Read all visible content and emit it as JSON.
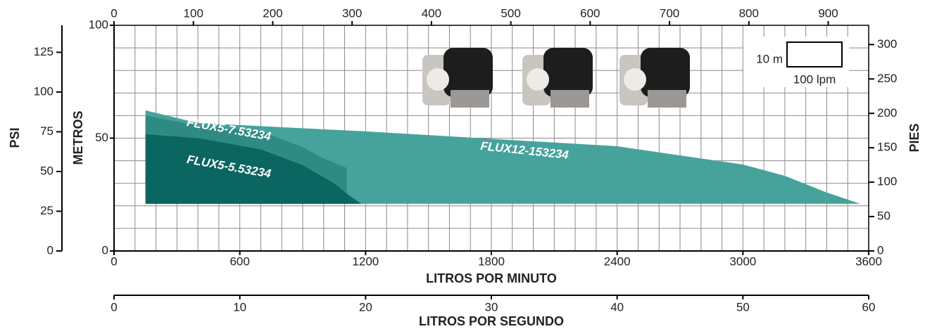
{
  "chart_data": {
    "type": "area",
    "x_label": "LITROS POR MINUTO",
    "y_label": "METROS",
    "xlim": [
      0,
      3600
    ],
    "xticks": [
      0,
      600,
      1200,
      1800,
      2400,
      3000,
      3600
    ],
    "ylim": [
      0,
      100
    ],
    "yticks": [
      0,
      50,
      100
    ],
    "xgrid": [
      0,
      100,
      200,
      300,
      400,
      500,
      600,
      700,
      800,
      900,
      1000,
      1100,
      1200,
      1300,
      1400,
      1500,
      1600,
      1700,
      1800,
      1900,
      2000,
      2100,
      2200,
      2300,
      2400,
      2500,
      2600,
      2700,
      2800,
      2900,
      3000,
      3100,
      3200,
      3300,
      3400,
      3500,
      3600
    ],
    "ygrid": [
      0,
      10,
      20,
      30,
      40,
      50,
      60,
      70,
      80,
      90,
      100
    ],
    "top_axis": {
      "lim": [
        0,
        951
      ],
      "ticks": [
        0,
        100,
        200,
        300,
        400,
        500,
        600,
        700,
        800,
        900
      ]
    },
    "right_axis": {
      "label": "PIES",
      "lim": [
        0,
        328
      ],
      "ticks": [
        0,
        50,
        100,
        150,
        200,
        250,
        300
      ]
    },
    "left_axis": {
      "label": "PSI",
      "lim": [
        0,
        142
      ],
      "ticks": [
        0,
        25,
        50,
        75,
        100,
        125
      ]
    },
    "bottom_axis": {
      "label": "LITROS POR SEGUNDO",
      "lim": [
        0,
        60
      ],
      "ticks": [
        0,
        10,
        20,
        30,
        40,
        50,
        60
      ]
    },
    "scale_box": {
      "height_label": "10 m",
      "width_label": "100 lpm"
    },
    "series": [
      {
        "name": "FLUX12-153234",
        "color": "#45a39b",
        "base": 20.9,
        "x": [
          150,
          400,
          1200,
          2400,
          3000,
          3200,
          3400,
          3560
        ],
        "values": [
          62.3,
          56.7,
          53,
          46.4,
          38.3,
          33.3,
          25.9,
          20.9
        ]
      },
      {
        "name": "FLUX5-7.53234",
        "color": "#2f8a83",
        "base": 20.9,
        "x": [
          150,
          400,
          700,
          900,
          1000,
          1110
        ],
        "values": [
          60,
          55.5,
          53,
          46,
          41,
          36.8
        ]
      },
      {
        "name": "FLUX5-5.53234",
        "color": "#0b6560",
        "base": 20.9,
        "x": [
          150,
          400,
          700,
          900,
          1050,
          1130,
          1180
        ],
        "values": [
          51.7,
          50,
          45,
          38,
          30,
          24,
          20.9
        ]
      }
    ]
  }
}
